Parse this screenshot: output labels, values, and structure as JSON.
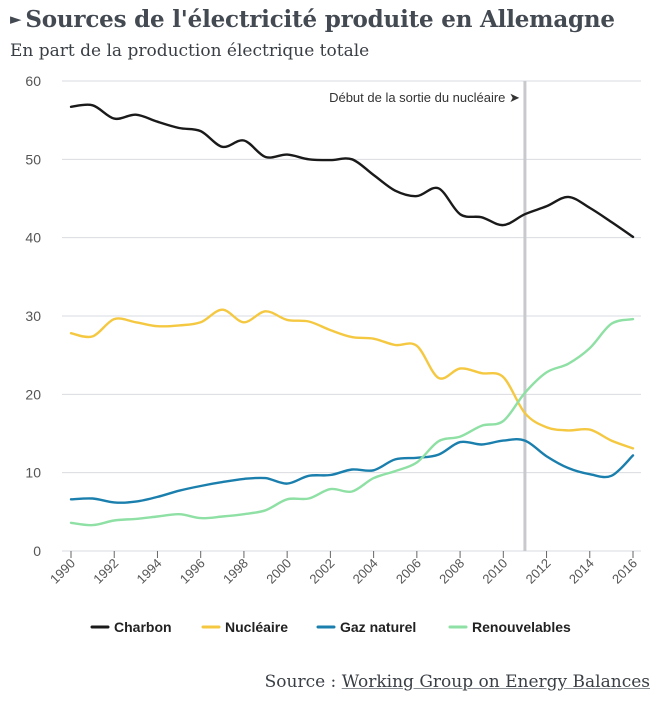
{
  "header": {
    "title": "Sources de l'électricité produite en Allemagne",
    "subtitle": "En part de la production électrique totale"
  },
  "footer": {
    "source_label": "Source :",
    "source_link": "Working Group on Energy Balances"
  },
  "chart_data": {
    "type": "line",
    "title": "Sources de l'électricité produite en Allemagne",
    "subtitle": "En part de la production électrique totale",
    "xlabel": "",
    "ylabel": "",
    "x": [
      1990,
      1991,
      1992,
      1993,
      1994,
      1995,
      1996,
      1997,
      1998,
      1999,
      2000,
      2001,
      2002,
      2003,
      2004,
      2005,
      2006,
      2007,
      2008,
      2009,
      2010,
      2011,
      2012,
      2013,
      2014,
      2015,
      2016
    ],
    "xticks": [
      "1990",
      "1992",
      "1994",
      "1996",
      "1998",
      "2000",
      "2002",
      "2004",
      "2006",
      "2008",
      "2010",
      "2012",
      "2014",
      "2016"
    ],
    "ylim": [
      0,
      60
    ],
    "yticks": [
      "0",
      "10",
      "20",
      "30",
      "40",
      "50",
      "60"
    ],
    "grid": true,
    "legend_position": "bottom",
    "series": [
      {
        "name": "Charbon",
        "color": "#1a1a1a",
        "values": [
          56.7,
          56.9,
          55.2,
          55.7,
          54.8,
          54.0,
          53.6,
          51.6,
          52.4,
          50.3,
          50.6,
          50.0,
          49.9,
          50.0,
          48.0,
          46.0,
          45.3,
          46.3,
          43.0,
          42.6,
          41.6,
          43.0,
          44.0,
          45.2,
          43.8,
          42.0,
          40.1
        ]
      },
      {
        "name": "Nucléaire",
        "color": "#f5c842",
        "values": [
          27.8,
          27.4,
          29.6,
          29.2,
          28.7,
          28.8,
          29.2,
          30.8,
          29.2,
          30.6,
          29.5,
          29.3,
          28.2,
          27.3,
          27.1,
          26.3,
          26.2,
          22.1,
          23.3,
          22.7,
          22.2,
          17.6,
          15.8,
          15.4,
          15.5,
          14.1,
          13.1
        ]
      },
      {
        "name": "Gaz naturel",
        "color": "#1b7fad",
        "values": [
          6.6,
          6.7,
          6.2,
          6.3,
          6.9,
          7.7,
          8.3,
          8.8,
          9.2,
          9.3,
          8.6,
          9.6,
          9.7,
          10.4,
          10.3,
          11.7,
          11.9,
          12.3,
          13.9,
          13.6,
          14.1,
          14.1,
          12.1,
          10.6,
          9.8,
          9.6,
          12.2
        ]
      },
      {
        "name": "Renouvelables",
        "color": "#8ee0a4",
        "values": [
          3.6,
          3.3,
          3.9,
          4.1,
          4.4,
          4.7,
          4.2,
          4.4,
          4.7,
          5.2,
          6.6,
          6.7,
          7.9,
          7.6,
          9.3,
          10.2,
          11.3,
          14.0,
          14.6,
          16.0,
          16.6,
          20.2,
          22.8,
          23.9,
          25.9,
          29.0,
          29.6
        ]
      }
    ],
    "annotations": [
      {
        "type": "vertical-line",
        "x": 2011,
        "label": "Début de la sortie du nucléaire ➤"
      }
    ]
  }
}
